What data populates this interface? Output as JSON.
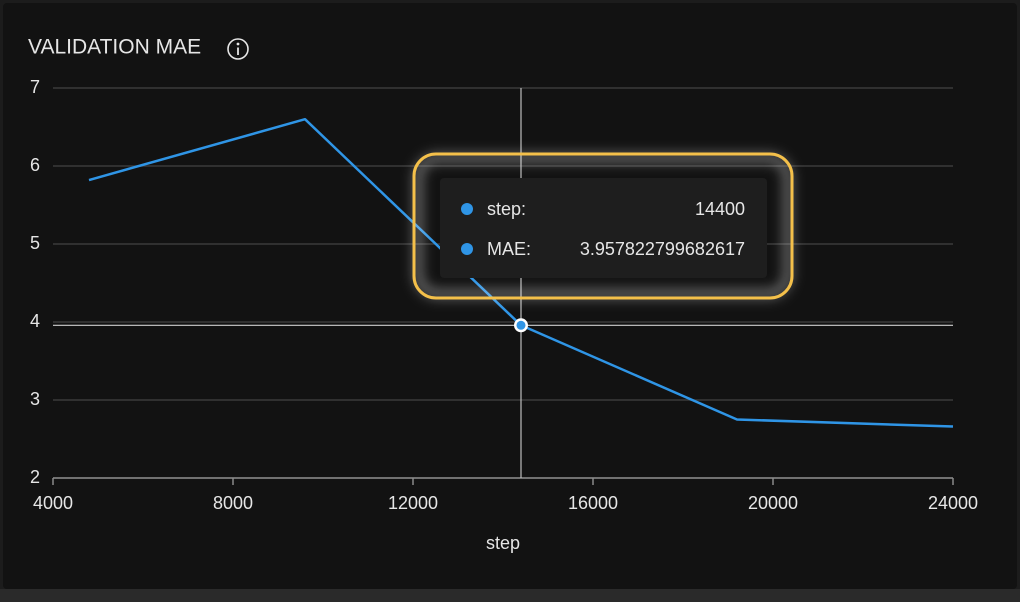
{
  "chart_data": {
    "type": "line",
    "title": "VALIDATION MAE",
    "x_label": "step",
    "x": [
      4800,
      9600,
      14400,
      19200,
      24000
    ],
    "series": [
      {
        "name": "MAE",
        "color": "#2f95e6",
        "values": [
          5.82,
          6.6,
          3.957822799682617,
          2.75,
          2.66
        ]
      }
    ],
    "xlim": [
      4000,
      24000
    ],
    "xticks": [
      4000,
      8000,
      12000,
      16000,
      20000,
      24000
    ],
    "ylim": [
      2,
      7
    ],
    "yticks": [
      2,
      3,
      4,
      5,
      6,
      7
    ],
    "grid": true,
    "tooltip": {
      "x_label": "step:",
      "y_label": "MAE:"
    }
  }
}
